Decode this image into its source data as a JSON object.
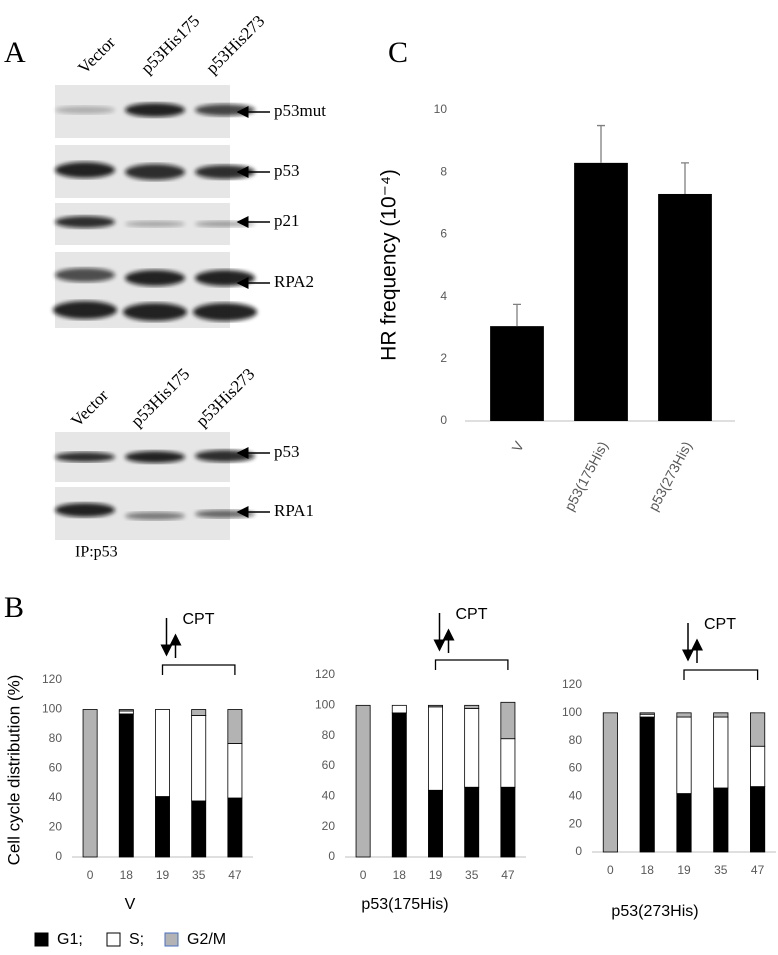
{
  "panel_labels": [
    "A",
    "B",
    "C"
  ],
  "blot_top": {
    "lanes": [
      "Vector",
      "p53His175",
      "p53His273"
    ],
    "bands": [
      "p53mut",
      "p53",
      "p21",
      "RPA2"
    ]
  },
  "blot_ip": {
    "lanes": [
      "Vector",
      "p53His175",
      "p53His273"
    ],
    "bands": [
      "p53",
      "RPA1"
    ],
    "caption": "IP:p53"
  },
  "legend": [
    {
      "name": "G1;",
      "color": "#000000"
    },
    {
      "name": "S;",
      "color": "#ffffff"
    },
    {
      "name": "G2/M",
      "color": "#b3b3b3"
    }
  ],
  "chart_data": [
    {
      "type": "bar",
      "ylabel": "HR frequency (10⁻⁴)",
      "categories": [
        "V",
        "p53(175His)",
        "p53(273His)"
      ],
      "values": [
        3.05,
        8.3,
        7.3
      ],
      "errors": [
        0.7,
        1.2,
        1.0
      ],
      "color": "#000000",
      "ylim": [
        0,
        10
      ],
      "yticks": [
        0,
        2,
        4,
        6,
        8,
        10
      ]
    },
    {
      "type": "stacked_bar",
      "ylabel": "Cell cycle distribution (%)",
      "xlabel": "V",
      "annotation": "CPT",
      "categories": [
        "0",
        "18",
        "19",
        "35",
        "47"
      ],
      "series": [
        {
          "color": "#000000",
          "values": [
            0,
            97,
            41,
            38,
            40
          ]
        },
        {
          "color": "#ffffff",
          "values": [
            0,
            2,
            59,
            58,
            37
          ]
        },
        {
          "color": "#b3b3b3",
          "values": [
            100,
            1,
            0,
            4,
            23
          ]
        }
      ],
      "ylim": [
        0,
        120
      ],
      "yticks": [
        0,
        20,
        40,
        60,
        80,
        100,
        120
      ]
    },
    {
      "type": "stacked_bar",
      "xlabel": "p53(175His)",
      "annotation": "CPT",
      "categories": [
        "0",
        "18",
        "19",
        "35",
        "47"
      ],
      "series": [
        {
          "color": "#000000",
          "values": [
            0,
            95,
            44,
            46,
            46
          ]
        },
        {
          "color": "#ffffff",
          "values": [
            0,
            5,
            55,
            52,
            32
          ]
        },
        {
          "color": "#b3b3b3",
          "values": [
            100,
            0,
            1,
            2,
            24
          ]
        }
      ],
      "ylim": [
        0,
        120
      ],
      "yticks": [
        0,
        20,
        40,
        60,
        80,
        100,
        120
      ]
    },
    {
      "type": "stacked_bar",
      "xlabel": "p53(273His)",
      "annotation": "CPT",
      "categories": [
        "0",
        "18",
        "19",
        "35",
        "47"
      ],
      "series": [
        {
          "color": "#000000",
          "values": [
            0,
            97,
            42,
            46,
            47
          ]
        },
        {
          "color": "#ffffff",
          "values": [
            0,
            2,
            55,
            51,
            29
          ]
        },
        {
          "color": "#b3b3b3",
          "values": [
            100,
            1,
            3,
            3,
            24
          ]
        }
      ],
      "ylim": [
        0,
        120
      ],
      "yticks": [
        0,
        20,
        40,
        60,
        80,
        100,
        120
      ]
    }
  ]
}
